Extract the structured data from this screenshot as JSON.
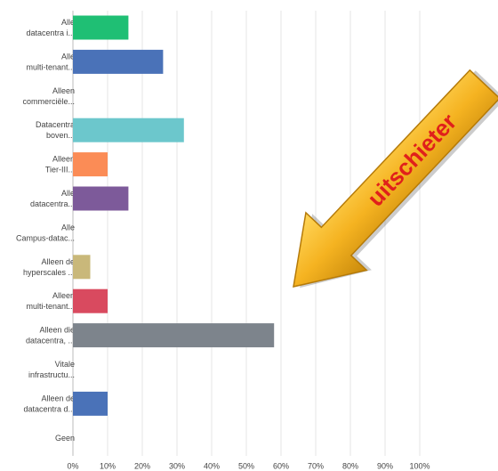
{
  "chart_data": {
    "type": "hbar",
    "categories": [
      "Alle\ndatacentra i...",
      "Alle\nmulti-tenant...",
      "Alleen\ncommerciële...",
      "Datacentra\nboven...",
      "Alleen\nTier-III...",
      "Alle\ndatacentra...",
      "Alle\nCampus-datac...",
      "Alleen de\nhyperscales ...",
      "Alleen\nmulti-tenant...",
      "Alleen die\ndatacentra, ...",
      "Vitale\ninfrastructu...",
      "Alleen de\ndatacentra d...",
      "Geen"
    ],
    "values": [
      16,
      26,
      0,
      32,
      10,
      16,
      0,
      5,
      10,
      58,
      0,
      10,
      0
    ],
    "colors": [
      "#1fbf74",
      "#4a72b8",
      "#4a72b8",
      "#6cc7cc",
      "#fb8c56",
      "#7d5a9a",
      "#7d5a9a",
      "#c9b87a",
      "#d94a5f",
      "#7d848c",
      "#7d848c",
      "#4a72b8",
      "#4a72b8"
    ],
    "xlim": [
      0,
      100
    ],
    "xticks": [
      {
        "value": 0,
        "label": "0%"
      },
      {
        "value": 10,
        "label": "10%"
      },
      {
        "value": 20,
        "label": "20%"
      },
      {
        "value": 30,
        "label": "30%"
      },
      {
        "value": 40,
        "label": "40%"
      },
      {
        "value": 50,
        "label": "50%"
      },
      {
        "value": 60,
        "label": "60%"
      },
      {
        "value": 70,
        "label": "70%"
      },
      {
        "value": 80,
        "label": "80%"
      },
      {
        "value": 90,
        "label": "90%"
      },
      {
        "value": 100,
        "label": "100%"
      }
    ],
    "grid": true,
    "annotation": "uitschieter"
  }
}
